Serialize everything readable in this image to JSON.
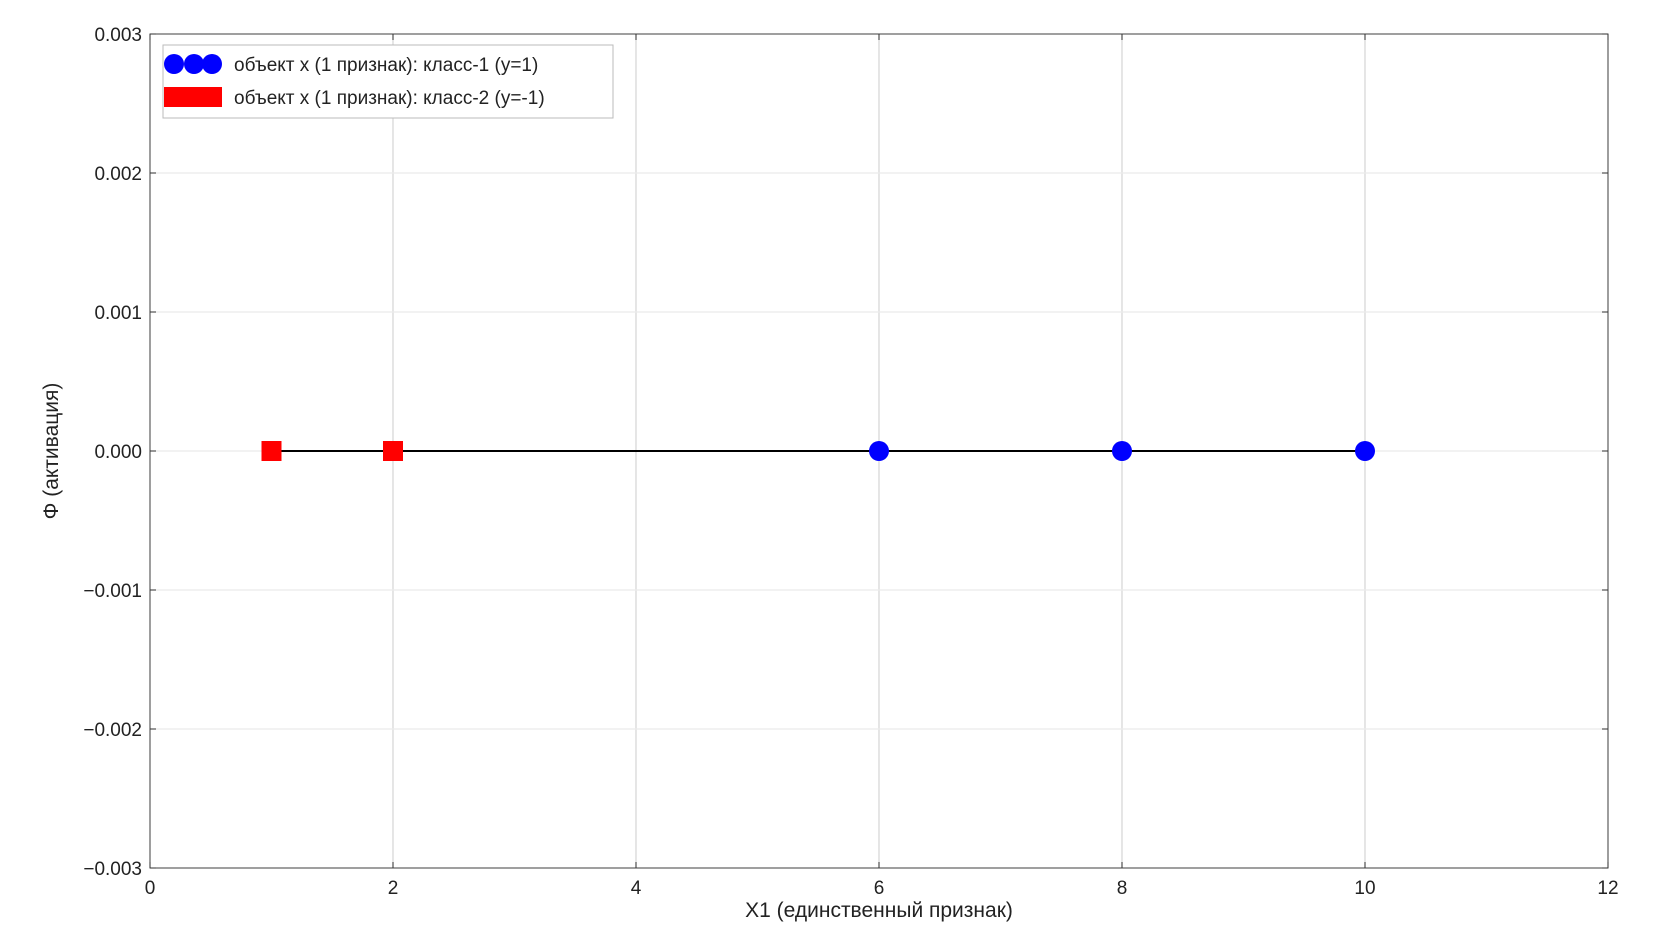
{
  "chart_data": {
    "type": "scatter",
    "xlabel": "X1 (единственный признак)",
    "ylabel": "Φ (активация)",
    "xlim": [
      0,
      12
    ],
    "ylim": [
      -0.003,
      0.003
    ],
    "xticks": [
      0,
      2,
      4,
      6,
      8,
      10,
      12
    ],
    "yticks": [
      0.003,
      0.002,
      0.001,
      0.0,
      -0.001,
      -0.002,
      -0.003
    ],
    "xtick_labels": [
      "0",
      "2",
      "4",
      "6",
      "8",
      "10",
      "12"
    ],
    "ytick_labels": [
      "0.003",
      "0.002",
      "0.001",
      "0.000",
      "−0.001",
      "−0.002",
      "−0.003"
    ],
    "grid": true,
    "legend_position": "top-left",
    "line": {
      "x": [
        1,
        10
      ],
      "y": [
        0,
        0
      ],
      "color": "#000000"
    },
    "series": [
      {
        "name": "объект x (1 признак): класс-1 (y=1)",
        "marker": "circle",
        "color": "#0000ff",
        "x": [
          6,
          8,
          10
        ],
        "y": [
          0,
          0,
          0
        ]
      },
      {
        "name": "объект x (1 признак): класс-2 (y=-1)",
        "marker": "square",
        "color": "#ff0000",
        "x": [
          1,
          2
        ],
        "y": [
          0,
          0
        ]
      }
    ]
  }
}
